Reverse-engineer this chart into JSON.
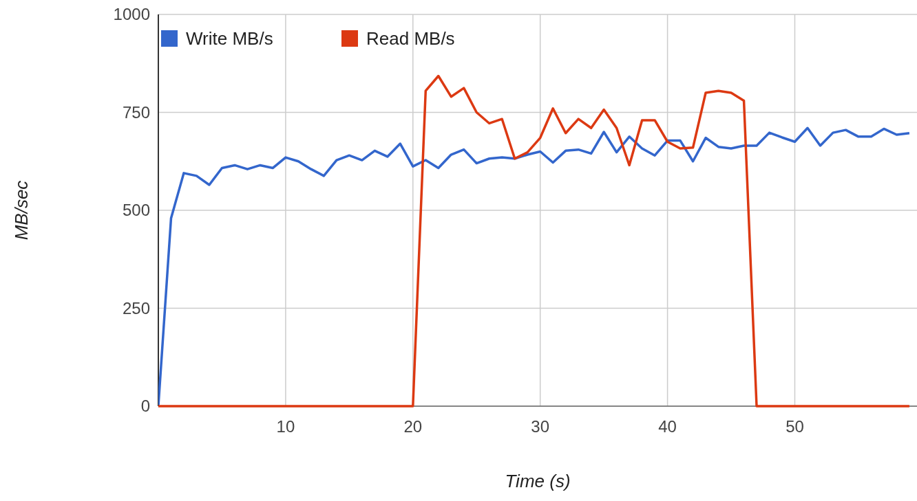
{
  "chart_data": {
    "type": "line",
    "xlabel": "Time (s)",
    "ylabel": "MB/sec",
    "xlim": [
      0,
      59.6
    ],
    "xticks": [
      10,
      20,
      30,
      40,
      50
    ],
    "ylim": [
      0,
      1000
    ],
    "yticks": [
      0,
      250,
      500,
      750,
      1000
    ],
    "grid": true,
    "legend": "top left",
    "x": [
      0,
      1,
      2,
      3,
      4,
      5,
      6,
      7,
      8,
      9,
      10,
      11,
      12,
      13,
      14,
      15,
      16,
      17,
      18,
      19,
      20,
      21,
      22,
      23,
      24,
      25,
      26,
      27,
      28,
      29,
      30,
      31,
      32,
      33,
      34,
      35,
      36,
      37,
      38,
      39,
      40,
      41,
      42,
      43,
      44,
      45,
      46,
      47,
      48,
      49,
      50,
      51,
      52,
      53,
      54,
      55,
      56,
      57,
      58,
      59
    ],
    "series": [
      {
        "name": "Write MB/s",
        "color": "#3366cc",
        "values": [
          0,
          480,
          595,
          588,
          565,
          608,
          615,
          605,
          615,
          608,
          635,
          625,
          605,
          588,
          628,
          640,
          628,
          652,
          637,
          670,
          612,
          628,
          608,
          642,
          655,
          620,
          632,
          635,
          632,
          642,
          650,
          622,
          652,
          655,
          645,
          700,
          648,
          688,
          658,
          640,
          678,
          678,
          625,
          685,
          662,
          658,
          665,
          665,
          698,
          686,
          675,
          710,
          665,
          698,
          705,
          688,
          688,
          708,
          693,
          697
        ]
      },
      {
        "name": "Read MB/s",
        "color": "#dc3912",
        "values": [
          0,
          0,
          0,
          0,
          0,
          0,
          0,
          0,
          0,
          0,
          0,
          0,
          0,
          0,
          0,
          0,
          0,
          0,
          0,
          0,
          0,
          805,
          843,
          790,
          812,
          750,
          722,
          733,
          632,
          648,
          685,
          760,
          697,
          733,
          710,
          757,
          710,
          615,
          730,
          730,
          675,
          658,
          660,
          800,
          805,
          800,
          780,
          0,
          0,
          0,
          0,
          0,
          0,
          0,
          0,
          0,
          0,
          0,
          0,
          0
        ]
      }
    ]
  }
}
